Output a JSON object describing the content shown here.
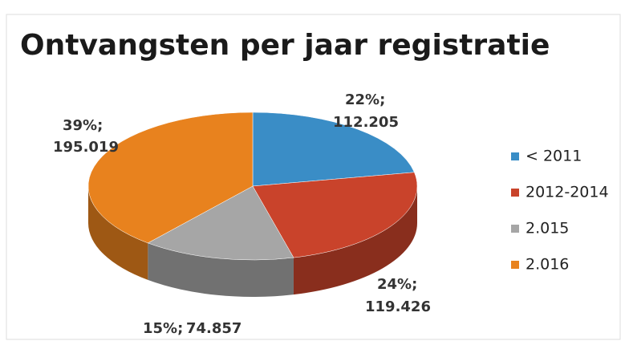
{
  "chart_data": {
    "type": "pie",
    "title": "Ontvangsten per jaar registratie",
    "categories": [
      "< 2011",
      "2012-2014",
      "2.015",
      "2.016"
    ],
    "values": [
      22,
      24,
      15,
      39
    ],
    "value_labels": [
      "22%;",
      "24%;",
      "15%;",
      "39%;"
    ],
    "amount_labels": [
      "112.205",
      "119.426",
      "74.857",
      "195.019"
    ],
    "colors": [
      "#3a8dc6",
      "#c9432b",
      "#a6a6a6",
      "#e8821e"
    ],
    "legend": "right"
  }
}
